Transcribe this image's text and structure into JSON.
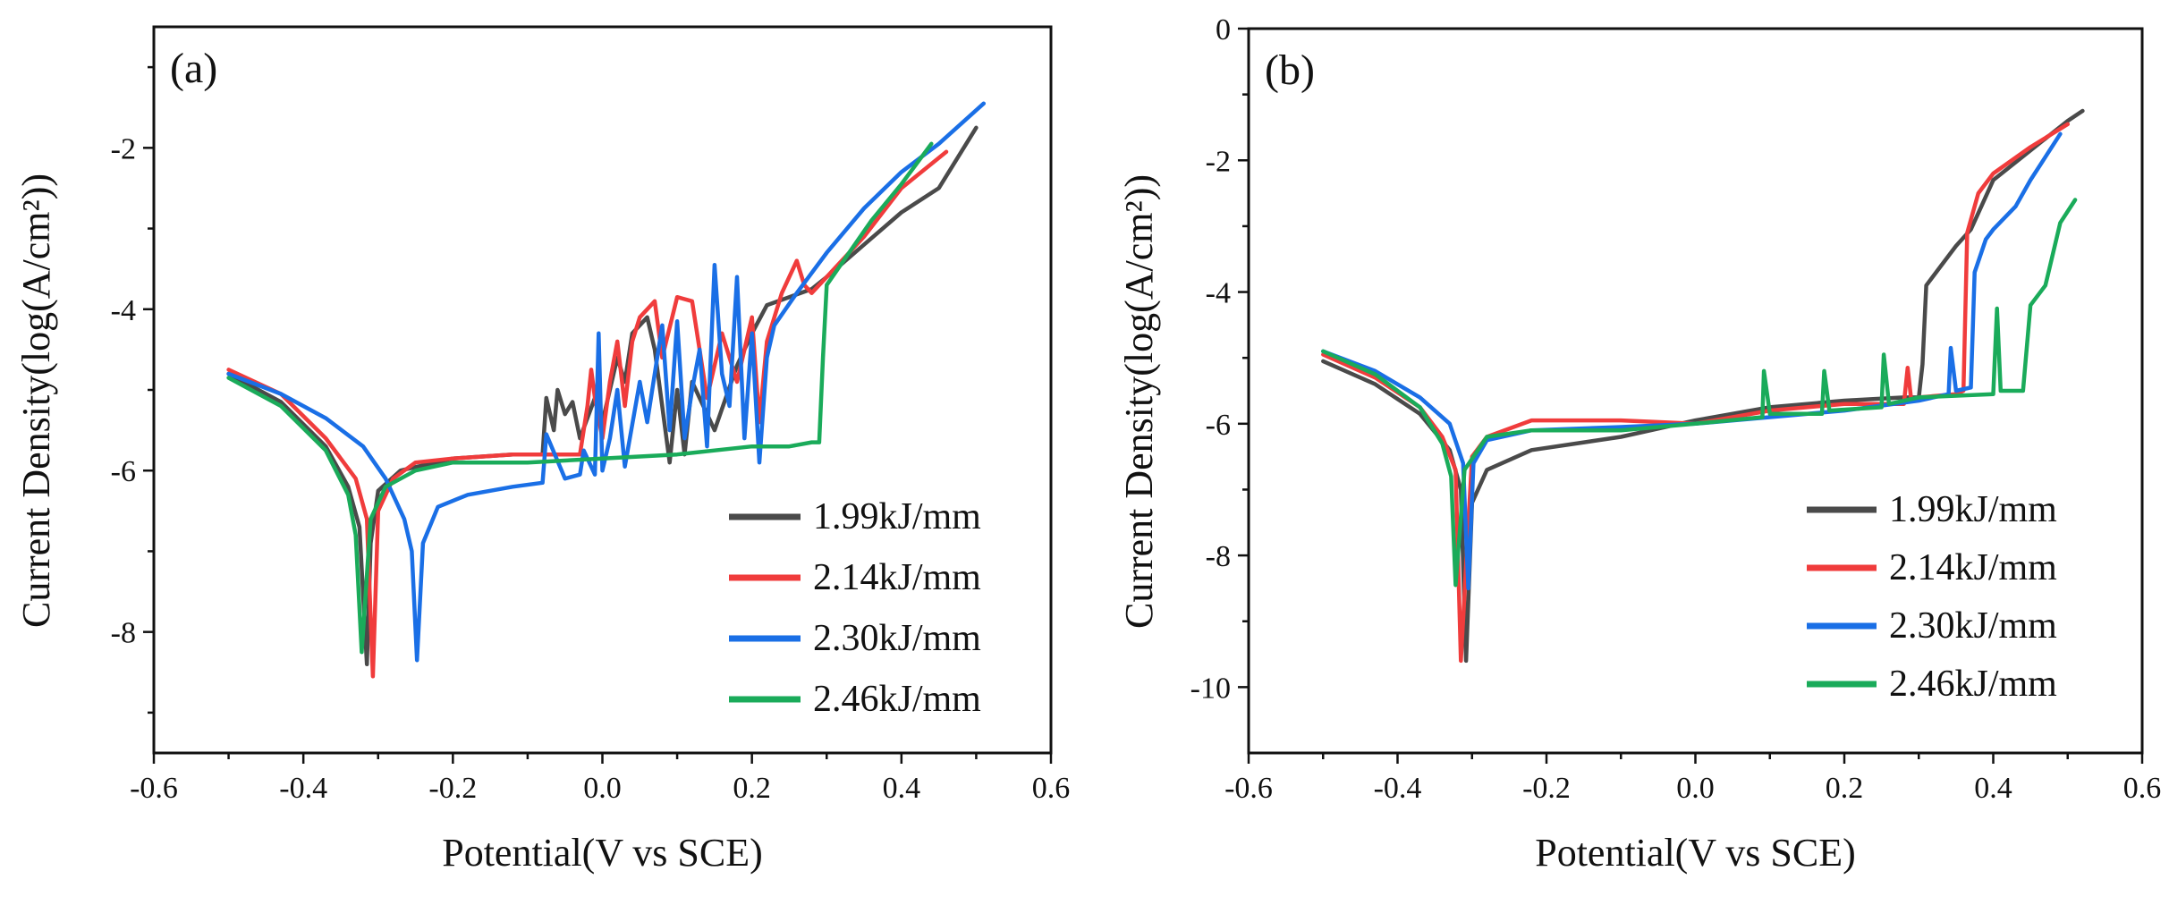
{
  "figure": {
    "series_colors": [
      "#4a4a4a",
      "#f03c3c",
      "#1a6fe6",
      "#1aab5a"
    ],
    "legend": [
      "1.99kJ/mm",
      "2.14kJ/mm",
      "2.30kJ/mm",
      "2.46kJ/mm"
    ]
  },
  "chart_data": [
    {
      "type": "line",
      "panel_label": "(a)",
      "xlabel": "Potential(V vs SCE)",
      "ylabel": "Current Density(log(A/cm²))",
      "xlim": [
        -0.6,
        0.6
      ],
      "ylim": [
        -9.5,
        -0.5
      ],
      "xticks": [
        -0.6,
        -0.4,
        -0.2,
        0.0,
        0.2,
        0.4,
        0.6
      ],
      "xtick_labels": [
        "-0.6",
        "-0.4",
        "-0.2",
        "0.0",
        "0.2",
        "0.4",
        "0.6"
      ],
      "yticks": [
        -8,
        -6,
        -4,
        -2
      ],
      "ytick_labels": [
        "-8",
        "-6",
        "-4",
        "-2"
      ],
      "grid": false,
      "legend_position": "lower-right",
      "series": [
        {
          "name": "1.99kJ/mm",
          "x": [
            -0.5,
            -0.43,
            -0.37,
            -0.34,
            -0.325,
            -0.315,
            -0.31,
            -0.3,
            -0.27,
            -0.2,
            -0.12,
            -0.08,
            -0.075,
            -0.065,
            -0.06,
            -0.05,
            -0.04,
            -0.03,
            -0.01,
            0.0,
            0.02,
            0.03,
            0.04,
            0.06,
            0.07,
            0.09,
            0.1,
            0.11,
            0.12,
            0.15,
            0.18,
            0.2,
            0.22,
            0.25,
            0.28,
            0.3,
            0.35,
            0.4,
            0.45,
            0.5
          ],
          "y": [
            -4.8,
            -5.15,
            -5.7,
            -6.2,
            -6.7,
            -8.4,
            -6.9,
            -6.25,
            -6.0,
            -5.85,
            -5.8,
            -5.8,
            -5.1,
            -5.5,
            -5.0,
            -5.3,
            -5.15,
            -5.6,
            -5.1,
            -5.4,
            -4.6,
            -4.9,
            -4.3,
            -4.1,
            -4.5,
            -5.9,
            -5.0,
            -5.8,
            -4.9,
            -5.5,
            -4.7,
            -4.3,
            -3.95,
            -3.85,
            -3.75,
            -3.6,
            -3.2,
            -2.8,
            -2.5,
            -1.75
          ]
        },
        {
          "name": "2.14kJ/mm",
          "x": [
            -0.5,
            -0.43,
            -0.37,
            -0.33,
            -0.315,
            -0.307,
            -0.3,
            -0.28,
            -0.25,
            -0.2,
            -0.12,
            -0.03,
            -0.02,
            -0.015,
            -0.01,
            0.0,
            0.01,
            0.02,
            0.03,
            0.04,
            0.05,
            0.07,
            0.08,
            0.1,
            0.12,
            0.14,
            0.16,
            0.18,
            0.2,
            0.21,
            0.22,
            0.24,
            0.26,
            0.27,
            0.28,
            0.3,
            0.35,
            0.4,
            0.46
          ],
          "y": [
            -4.75,
            -5.05,
            -5.6,
            -6.1,
            -6.6,
            -8.55,
            -6.5,
            -6.1,
            -5.9,
            -5.85,
            -5.8,
            -5.8,
            -5.2,
            -4.75,
            -5.1,
            -5.6,
            -4.9,
            -4.4,
            -5.2,
            -4.4,
            -4.1,
            -3.9,
            -4.6,
            -3.85,
            -3.9,
            -5.1,
            -4.3,
            -4.9,
            -4.1,
            -5.4,
            -4.4,
            -3.8,
            -3.4,
            -3.7,
            -3.8,
            -3.6,
            -3.1,
            -2.5,
            -2.05
          ]
        },
        {
          "name": "2.30kJ/mm",
          "x": [
            -0.5,
            -0.43,
            -0.37,
            -0.32,
            -0.29,
            -0.265,
            -0.255,
            -0.248,
            -0.24,
            -0.22,
            -0.18,
            -0.12,
            -0.08,
            -0.075,
            -0.05,
            -0.03,
            -0.025,
            -0.01,
            -0.005,
            0.0,
            0.01,
            0.02,
            0.03,
            0.05,
            0.06,
            0.08,
            0.09,
            0.1,
            0.11,
            0.12,
            0.13,
            0.14,
            0.15,
            0.16,
            0.17,
            0.18,
            0.19,
            0.2,
            0.21,
            0.22,
            0.23,
            0.26,
            0.3,
            0.35,
            0.4,
            0.45,
            0.51
          ],
          "y": [
            -4.8,
            -5.05,
            -5.35,
            -5.7,
            -6.1,
            -6.6,
            -7.0,
            -8.35,
            -6.9,
            -6.45,
            -6.3,
            -6.2,
            -6.15,
            -5.55,
            -6.1,
            -6.05,
            -5.75,
            -6.05,
            -4.3,
            -6.0,
            -5.6,
            -5.0,
            -5.95,
            -4.9,
            -5.4,
            -4.2,
            -5.5,
            -4.15,
            -5.6,
            -5.0,
            -4.5,
            -5.7,
            -3.45,
            -4.8,
            -5.2,
            -3.6,
            -5.6,
            -4.3,
            -5.9,
            -4.6,
            -4.2,
            -3.8,
            -3.3,
            -2.75,
            -2.3,
            -1.95,
            -1.45
          ]
        },
        {
          "name": "2.46kJ/mm",
          "x": [
            -0.5,
            -0.43,
            -0.37,
            -0.34,
            -0.33,
            -0.322,
            -0.31,
            -0.29,
            -0.25,
            -0.2,
            -0.1,
            0.0,
            0.1,
            0.15,
            0.2,
            0.25,
            0.28,
            0.29,
            0.295,
            0.3,
            0.33,
            0.36,
            0.4,
            0.44
          ],
          "y": [
            -4.85,
            -5.2,
            -5.75,
            -6.3,
            -6.8,
            -8.25,
            -6.6,
            -6.2,
            -6.0,
            -5.9,
            -5.9,
            -5.85,
            -5.8,
            -5.75,
            -5.7,
            -5.7,
            -5.65,
            -5.65,
            -4.6,
            -3.7,
            -3.3,
            -2.9,
            -2.45,
            -1.95
          ]
        }
      ]
    },
    {
      "type": "line",
      "panel_label": "(b)",
      "xlabel": "Potential(V vs SCE)",
      "ylabel": "Current Density(log(A/cm²))",
      "xlim": [
        -0.6,
        0.6
      ],
      "ylim": [
        -11,
        0
      ],
      "xticks": [
        -0.6,
        -0.4,
        -0.2,
        0.0,
        0.2,
        0.4,
        0.6
      ],
      "xtick_labels": [
        "-0.6",
        "-0.4",
        "-0.2",
        "0.0",
        "0.2",
        "0.4",
        "0.6"
      ],
      "yticks": [
        -10,
        -8,
        -6,
        -4,
        -2,
        0
      ],
      "ytick_labels": [
        "-10",
        "-8",
        "-6",
        "-4",
        "-2",
        "0"
      ],
      "grid": false,
      "legend_position": "lower-right",
      "series": [
        {
          "name": "1.99kJ/mm",
          "x": [
            -0.5,
            -0.43,
            -0.37,
            -0.33,
            -0.315,
            -0.308,
            -0.3,
            -0.28,
            -0.22,
            -0.1,
            0.0,
            0.1,
            0.2,
            0.28,
            0.3,
            0.305,
            0.31,
            0.33,
            0.35,
            0.37,
            0.4,
            0.45,
            0.5,
            0.52
          ],
          "y": [
            -5.05,
            -5.4,
            -5.85,
            -6.4,
            -7.0,
            -9.6,
            -7.2,
            -6.7,
            -6.4,
            -6.2,
            -5.95,
            -5.75,
            -5.65,
            -5.6,
            -5.6,
            -5.1,
            -3.9,
            -3.6,
            -3.3,
            -3.05,
            -2.3,
            -1.85,
            -1.4,
            -1.25
          ]
        },
        {
          "name": "2.14kJ/mm",
          "x": [
            -0.5,
            -0.43,
            -0.37,
            -0.34,
            -0.322,
            -0.315,
            -0.3,
            -0.28,
            -0.22,
            -0.1,
            0.0,
            0.1,
            0.2,
            0.28,
            0.285,
            0.29,
            0.3,
            0.35,
            0.36,
            0.365,
            0.38,
            0.4,
            0.45,
            0.5
          ],
          "y": [
            -4.95,
            -5.3,
            -5.75,
            -6.2,
            -6.7,
            -9.6,
            -6.5,
            -6.2,
            -5.95,
            -5.95,
            -6.0,
            -5.8,
            -5.7,
            -5.7,
            -5.15,
            -5.65,
            -5.6,
            -5.55,
            -5.5,
            -3.1,
            -2.5,
            -2.2,
            -1.8,
            -1.45
          ]
        },
        {
          "name": "2.30kJ/mm",
          "x": [
            -0.5,
            -0.43,
            -0.37,
            -0.33,
            -0.312,
            -0.305,
            -0.298,
            -0.28,
            -0.22,
            -0.1,
            0.0,
            0.1,
            0.2,
            0.3,
            0.34,
            0.343,
            0.35,
            0.37,
            0.375,
            0.39,
            0.4,
            0.43,
            0.45,
            0.49
          ],
          "y": [
            -4.9,
            -5.2,
            -5.6,
            -6.0,
            -6.6,
            -8.5,
            -6.6,
            -6.25,
            -6.1,
            -6.05,
            -6.0,
            -5.9,
            -5.8,
            -5.65,
            -5.55,
            -4.85,
            -5.5,
            -5.45,
            -3.7,
            -3.2,
            -3.05,
            -2.7,
            -2.3,
            -1.6
          ]
        },
        {
          "name": "2.46kJ/mm",
          "x": [
            -0.5,
            -0.43,
            -0.37,
            -0.34,
            -0.328,
            -0.322,
            -0.31,
            -0.28,
            -0.22,
            -0.1,
            0.0,
            0.09,
            0.092,
            0.1,
            0.17,
            0.173,
            0.18,
            0.25,
            0.253,
            0.26,
            0.3,
            0.4,
            0.405,
            0.41,
            0.43,
            0.44,
            0.45,
            0.47,
            0.49,
            0.51
          ],
          "y": [
            -4.9,
            -5.25,
            -5.75,
            -6.3,
            -6.8,
            -8.45,
            -6.7,
            -6.2,
            -6.1,
            -6.1,
            -6.0,
            -5.9,
            -5.2,
            -5.85,
            -5.85,
            -5.2,
            -5.8,
            -5.75,
            -4.95,
            -5.7,
            -5.6,
            -5.55,
            -4.25,
            -5.5,
            -5.5,
            -5.5,
            -4.2,
            -3.9,
            -2.95,
            -2.6
          ]
        }
      ]
    }
  ]
}
